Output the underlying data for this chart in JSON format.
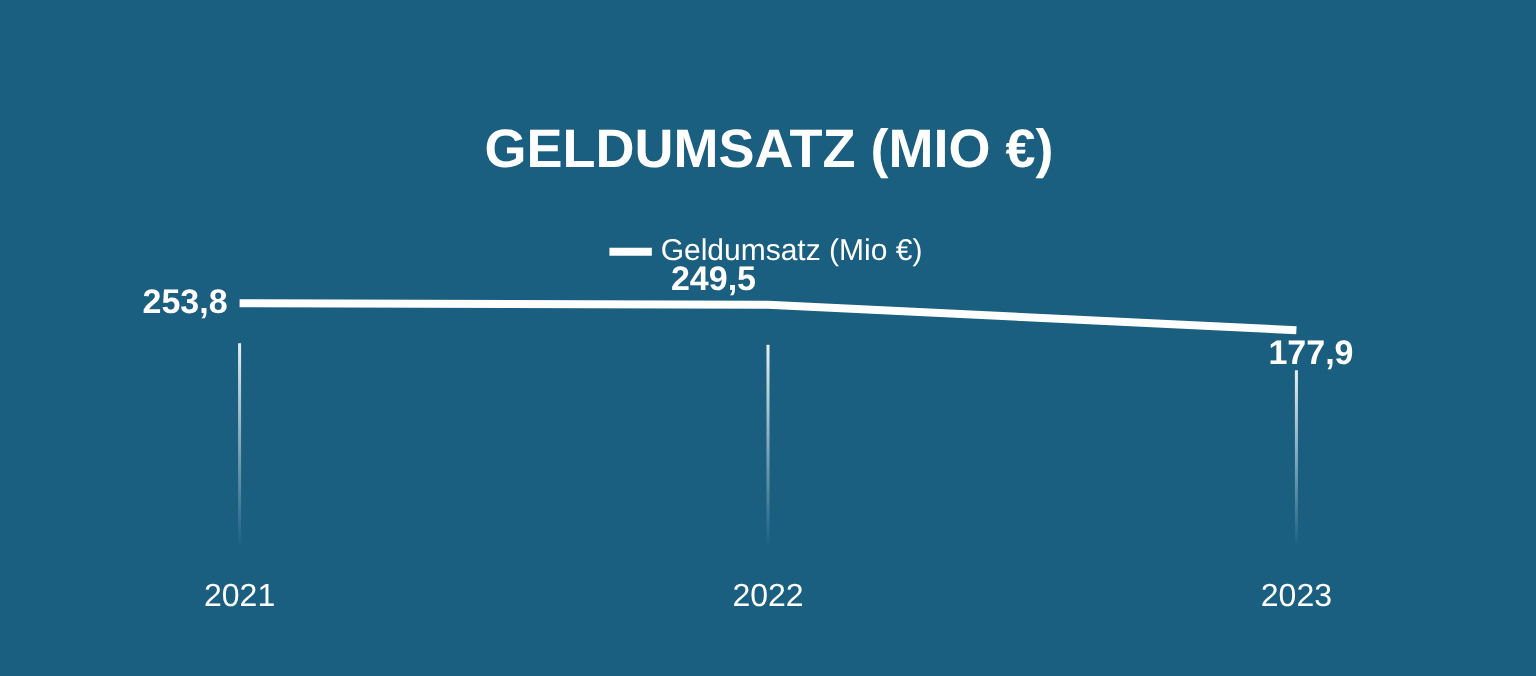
{
  "chart_data": {
    "type": "line",
    "title": "GELDUMSATZ (MIO €)",
    "categories": [
      "2021",
      "2022",
      "2023"
    ],
    "series": [
      {
        "name": "Geldumsatz (Mio €)",
        "color": "#ffffff",
        "values": [
          253.8,
          249.5,
          177.9
        ],
        "value_labels": [
          "253,8",
          "249,5",
          "177,9"
        ]
      }
    ],
    "legend": "top",
    "grid": "x",
    "marker": "none"
  }
}
